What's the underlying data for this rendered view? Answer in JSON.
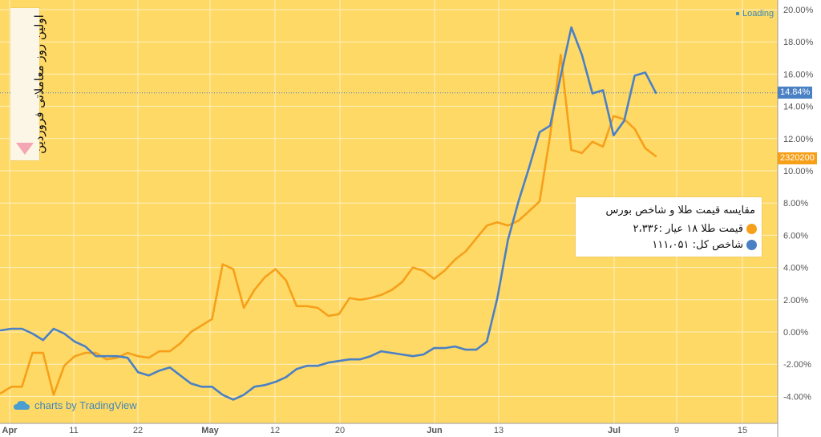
{
  "loading_label": "Loading",
  "watermark": "charts by TradingView",
  "annotation": "اولین روز معاملاتی فروردین",
  "legend": {
    "title": "مقایسه قیمت طلا و شاخص بورس",
    "gold_label": "قیمت طلا ۱۸ عیار :۲،۳۳۶",
    "index_label": "شاخص کل: ۱۱۱،۰۵۱"
  },
  "price_tags": {
    "index": "14.84%",
    "gold": "2320200"
  },
  "colors": {
    "background": "#ffd966",
    "gold": "#f6a01a",
    "index": "#4a80c4",
    "grid": "#fff0c0"
  },
  "chart_data": {
    "type": "line",
    "y_unit": "%",
    "ylim": [
      -5.5,
      20.3
    ],
    "y_ticks": [
      "20.00%",
      "18.00%",
      "16.00%",
      "14.00%",
      "12.00%",
      "10.00%",
      "8.00%",
      "6.00%",
      "4.00%",
      "2.00%",
      "0.00%",
      "-2.00%",
      "-4.00%"
    ],
    "x_ticks": [
      "Apr",
      "11",
      "22",
      "May",
      "12",
      "20",
      "Jun",
      "13",
      "Jul",
      "9",
      "15"
    ],
    "grid": true,
    "legend_position": "center-right",
    "series": [
      {
        "name": "قیمت طلا ۱۸ عیار",
        "values": [
          -3.8,
          -3.4,
          -3.4,
          -1.3,
          -1.3,
          -3.9,
          -2.1,
          -1.5,
          -1.3,
          -1.3,
          -1.7,
          -1.6,
          -1.3,
          -1.5,
          -1.6,
          -1.2,
          -1.2,
          -0.7,
          0.0,
          0.4,
          0.8,
          4.2,
          3.9,
          1.5,
          2.6,
          3.4,
          3.9,
          3.2,
          1.6,
          1.6,
          1.5,
          1.0,
          1.1,
          2.1,
          2.0,
          2.1,
          2.3,
          2.6,
          3.1,
          4.0,
          3.8,
          3.3,
          3.8,
          4.5,
          5.0,
          5.8,
          6.6,
          6.8,
          6.6,
          6.9,
          7.5,
          8.1,
          12.2,
          17.2,
          11.3,
          11.1,
          11.8,
          11.5,
          13.4,
          13.2,
          12.6,
          11.4,
          10.9
        ]
      },
      {
        "name": "شاخص کل",
        "values": [
          0.1,
          0.2,
          0.2,
          -0.1,
          -0.5,
          0.2,
          -0.1,
          -0.6,
          -0.9,
          -1.5,
          -1.5,
          -1.5,
          -1.6,
          -2.5,
          -2.7,
          -2.4,
          -2.2,
          -2.7,
          -3.2,
          -3.4,
          -3.4,
          -3.9,
          -4.2,
          -3.9,
          -3.4,
          -3.3,
          -3.1,
          -2.8,
          -2.3,
          -2.1,
          -2.1,
          -1.9,
          -1.8,
          -1.7,
          -1.7,
          -1.5,
          -1.2,
          -1.3,
          -1.4,
          -1.5,
          -1.4,
          -1.0,
          -1.0,
          -0.9,
          -1.1,
          -1.1,
          -0.6,
          2.1,
          5.7,
          8.1,
          10.2,
          12.4,
          12.8,
          15.9,
          18.9,
          17.2,
          14.8,
          15.0,
          12.2,
          13.1,
          15.9,
          16.1,
          14.84
        ]
      }
    ]
  }
}
